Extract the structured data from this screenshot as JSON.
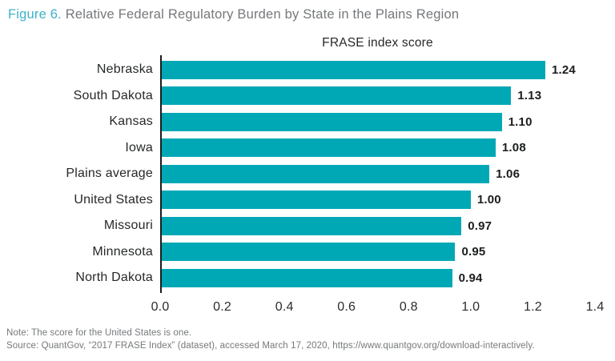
{
  "figure_title": {
    "prefix": "Figure 6.",
    "text": " Relative Federal Regulatory Burden by State in the Plains Region"
  },
  "chart_data": {
    "type": "bar",
    "orientation": "horizontal",
    "title": "FRASE index score",
    "categories": [
      "Nebraska",
      "South Dakota",
      "Kansas",
      "Iowa",
      "Plains average",
      "United States",
      "Missouri",
      "Minnesota",
      "North Dakota"
    ],
    "values": [
      1.24,
      1.13,
      1.1,
      1.08,
      1.06,
      1.0,
      0.97,
      0.95,
      0.94
    ],
    "value_labels": [
      "1.24",
      "1.13",
      "1.10",
      "1.08",
      "1.06",
      "1.00",
      "0.97",
      "0.95",
      "0.94"
    ],
    "xlabel": "",
    "ylabel": "",
    "xlim": [
      0,
      1.4
    ],
    "xticks": [
      "0.0",
      "0.2",
      "0.4",
      "0.6",
      "0.8",
      "1.0",
      "1.2",
      "1.4"
    ],
    "grid": false,
    "legend": "none",
    "bar_color": "#00a8b6"
  },
  "notes": {
    "note": "Note: The score for the United States is one.",
    "source": "Source: QuantGov, “2017 FRASE Index” (dataset), accessed March 17, 2020, https://www.quantgov.org/download-interactively."
  },
  "colors": {
    "bar_teal": "#00a8b6",
    "figure_number_teal": "#3eb1c8",
    "title_gray": "#75787b",
    "text_dark": "#26282a",
    "axis_black": "#1b1d1f"
  }
}
